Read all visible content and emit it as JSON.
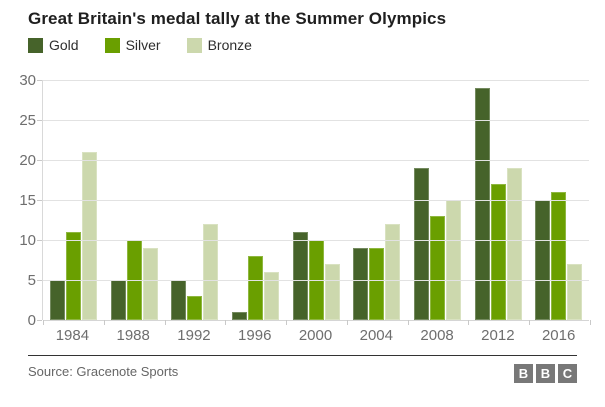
{
  "chart_data": {
    "type": "bar",
    "title": "Great Britain's medal tally at the Summer Olympics",
    "categories": [
      "1984",
      "1988",
      "1992",
      "1996",
      "2000",
      "2004",
      "2008",
      "2012",
      "2016"
    ],
    "series": [
      {
        "name": "Gold",
        "color": "#46632a",
        "values": [
          5,
          5,
          5,
          1,
          11,
          9,
          19,
          29,
          15
        ]
      },
      {
        "name": "Silver",
        "color": "#6a9f00",
        "values": [
          11,
          10,
          3,
          8,
          10,
          9,
          13,
          17,
          16
        ]
      },
      {
        "name": "Bronze",
        "color": "#ccd8ad",
        "values": [
          21,
          9,
          12,
          6,
          7,
          12,
          15,
          19,
          7
        ]
      }
    ],
    "xlabel": "",
    "ylabel": "",
    "ylim": [
      0,
      30
    ],
    "yticks": [
      0,
      5,
      10,
      15,
      20,
      25,
      30
    ],
    "grid": true,
    "legend_position": "top-left",
    "gridline_color": "#e2e2e2"
  },
  "footer": {
    "source": "Source: Gracenote Sports",
    "logo_letters": [
      "B",
      "B",
      "C"
    ]
  }
}
